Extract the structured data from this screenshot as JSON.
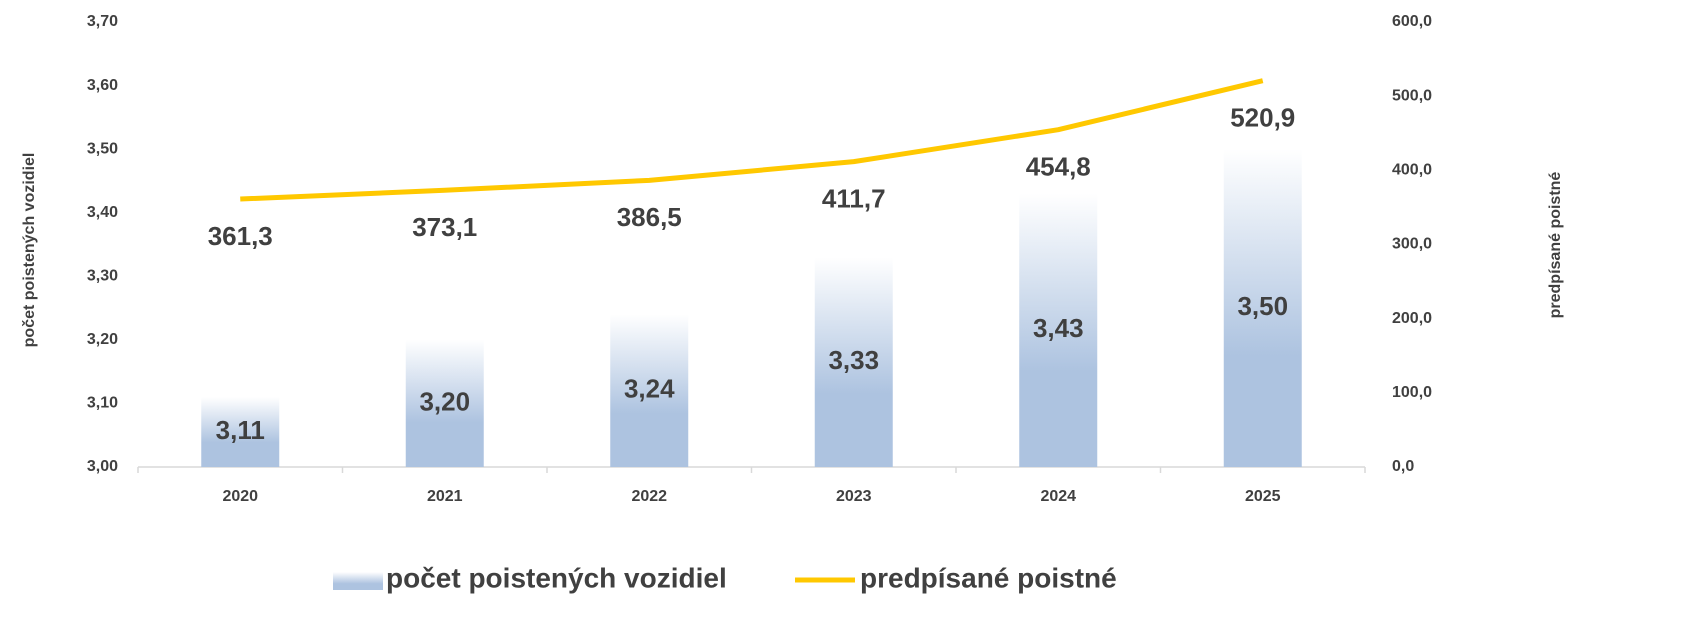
{
  "chart_data": {
    "type": "bar_line",
    "y_label": "počet poistených vozidiel",
    "y2_label": "predpísané poistné",
    "categories": [
      "2020",
      "2021",
      "2022",
      "2023",
      "2024",
      "2025"
    ],
    "series": [
      {
        "name": "počet poistených vozidiel",
        "type": "bar",
        "axis": "y",
        "color": "#adc3e0",
        "values": [
          3.11,
          3.2,
          3.24,
          3.33,
          3.43,
          3.5
        ],
        "value_labels": [
          "3,11",
          "3,20",
          "3,24",
          "3,33",
          "3,43",
          "3,50"
        ]
      },
      {
        "name": "predpísané poistné",
        "type": "line",
        "axis": "y2",
        "color": "#ffc800",
        "values": [
          361.3,
          373.1,
          386.5,
          411.7,
          454.8,
          520.9
        ],
        "value_labels": [
          "361,3",
          "373,1",
          "386,5",
          "411,7",
          "454,8",
          "520,9"
        ]
      }
    ],
    "ylim": [
      3.0,
      3.7
    ],
    "yticks": [
      {
        "value": 3.0,
        "label": "3,00"
      },
      {
        "value": 3.1,
        "label": "3,10"
      },
      {
        "value": 3.2,
        "label": "3,20"
      },
      {
        "value": 3.3,
        "label": "3,30"
      },
      {
        "value": 3.4,
        "label": "3,40"
      },
      {
        "value": 3.5,
        "label": "3,50"
      },
      {
        "value": 3.6,
        "label": "3,60"
      },
      {
        "value": 3.7,
        "label": "3,70"
      }
    ],
    "y2lim": [
      0,
      600
    ],
    "y2ticks": [
      {
        "value": 0,
        "label": "0,0"
      },
      {
        "value": 100,
        "label": "100,0"
      },
      {
        "value": 200,
        "label": "200,0"
      },
      {
        "value": 300,
        "label": "300,0"
      },
      {
        "value": 400,
        "label": "400,0"
      },
      {
        "value": 500,
        "label": "500,0"
      },
      {
        "value": 600,
        "label": "600,0"
      }
    ]
  }
}
